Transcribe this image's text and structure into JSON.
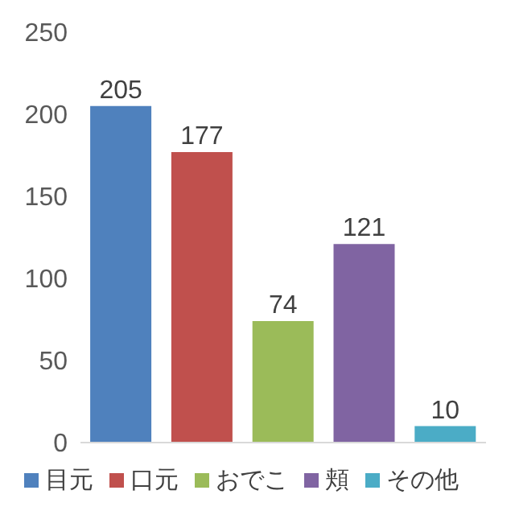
{
  "chart_data": {
    "type": "bar",
    "categories": [
      null,
      null,
      null,
      null,
      null
    ],
    "stacked": true,
    "series": [
      {
        "name": "目元",
        "color": "#4f81bd",
        "values": [
          205,
          null,
          null,
          null,
          null
        ]
      },
      {
        "name": "口元",
        "color": "#c0504d",
        "values": [
          null,
          177,
          null,
          null,
          null
        ]
      },
      {
        "name": "おでこ",
        "color": "#9bbb59",
        "values": [
          null,
          null,
          74,
          null,
          null
        ]
      },
      {
        "name": "頬",
        "color": "#8064a2",
        "values": [
          null,
          null,
          null,
          121,
          null
        ]
      },
      {
        "name": "その他",
        "color": "#4bacc6",
        "values": [
          null,
          null,
          null,
          null,
          10
        ]
      }
    ],
    "ylim": [
      0,
      250
    ],
    "yticks": [
      0,
      50,
      100,
      150,
      200,
      250
    ],
    "legend": "bottom",
    "data_labels": true,
    "tick_labels": "y"
  }
}
